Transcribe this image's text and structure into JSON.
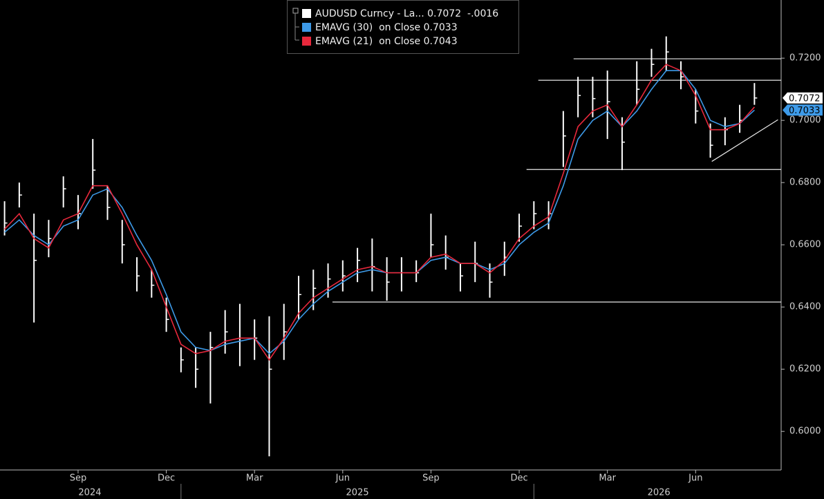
{
  "chart_data": {
    "type": "ohlc",
    "categories": [
      null,
      null,
      null,
      null,
      null,
      "Sep",
      null,
      null,
      null,
      null,
      null,
      "Dec",
      null,
      null,
      null,
      null,
      null,
      "Mar",
      null,
      null,
      null,
      null,
      null,
      "Jun",
      null,
      null,
      null,
      null,
      null,
      "Sep",
      null,
      null,
      null,
      null,
      null,
      "Dec",
      null,
      null,
      null,
      null,
      null,
      "Mar",
      null,
      null,
      null,
      null,
      null,
      "Jun",
      null,
      null,
      null,
      null
    ],
    "x_groups": [
      "2024",
      "2025",
      "2026"
    ],
    "series": [
      {
        "name": "AUDUSD Curncy - La...",
        "color": "#ffffff",
        "change": "-.0016",
        "high": [
          0.674,
          0.68,
          0.67,
          0.668,
          0.682,
          0.676,
          0.694,
          0.679,
          0.668,
          0.656,
          0.652,
          0.643,
          0.627,
          0.627,
          0.632,
          0.639,
          0.641,
          0.636,
          0.637,
          0.641,
          0.65,
          0.652,
          0.654,
          0.655,
          0.659,
          0.662,
          0.656,
          0.656,
          0.655,
          0.67,
          0.663,
          0.654,
          0.661,
          0.654,
          0.661,
          0.67,
          0.674,
          0.674,
          0.703,
          0.714,
          0.714,
          0.716,
          0.701,
          0.719,
          0.723,
          0.727,
          0.719,
          0.71,
          0.699,
          0.701,
          0.705,
          0.712
        ],
        "low": [
          0.663,
          0.672,
          0.635,
          0.656,
          0.672,
          0.665,
          0.678,
          0.668,
          0.654,
          0.645,
          0.643,
          0.632,
          0.619,
          0.614,
          0.609,
          0.625,
          0.621,
          0.623,
          0.592,
          0.623,
          0.636,
          0.639,
          0.643,
          0.645,
          0.648,
          0.645,
          0.642,
          0.645,
          0.648,
          0.656,
          0.652,
          0.645,
          0.648,
          0.643,
          0.65,
          0.661,
          0.665,
          0.665,
          0.685,
          0.701,
          0.701,
          0.694,
          0.684,
          0.705,
          0.714,
          0.716,
          0.71,
          0.699,
          0.688,
          0.692,
          0.696,
          0.705
        ],
        "values": [
          0.667,
          0.676,
          0.655,
          0.662,
          0.678,
          0.67,
          0.684,
          0.672,
          0.66,
          0.65,
          0.647,
          0.636,
          0.623,
          0.62,
          0.627,
          0.632,
          0.63,
          0.63,
          0.62,
          0.632,
          0.644,
          0.646,
          0.649,
          0.65,
          0.655,
          0.653,
          0.648,
          0.651,
          0.651,
          0.66,
          0.656,
          0.65,
          0.654,
          0.648,
          0.656,
          0.666,
          0.67,
          0.67,
          0.695,
          0.708,
          0.707,
          0.706,
          0.693,
          0.71,
          0.718,
          0.722,
          0.714,
          0.703,
          0.692,
          0.697,
          0.7,
          0.7072
        ]
      },
      {
        "name": "EMAVG (30)  on Close",
        "color": "#3d9ae8",
        "values": [
          0.664,
          0.668,
          0.663,
          0.66,
          0.666,
          0.668,
          0.676,
          0.678,
          0.672,
          0.663,
          0.655,
          0.644,
          0.632,
          0.627,
          0.626,
          0.628,
          0.629,
          0.63,
          0.625,
          0.629,
          0.636,
          0.641,
          0.645,
          0.648,
          0.651,
          0.652,
          0.651,
          0.651,
          0.651,
          0.655,
          0.656,
          0.654,
          0.654,
          0.652,
          0.654,
          0.66,
          0.664,
          0.667,
          0.679,
          0.694,
          0.7,
          0.703,
          0.698,
          0.703,
          0.71,
          0.716,
          0.716,
          0.71,
          0.7,
          0.698,
          0.699,
          0.7033
        ]
      },
      {
        "name": "EMAVG (21)  on Close",
        "color": "#e8283c",
        "values": [
          0.665,
          0.67,
          0.662,
          0.659,
          0.668,
          0.67,
          0.679,
          0.679,
          0.67,
          0.66,
          0.652,
          0.64,
          0.628,
          0.625,
          0.626,
          0.629,
          0.63,
          0.63,
          0.623,
          0.63,
          0.638,
          0.643,
          0.646,
          0.649,
          0.652,
          0.653,
          0.651,
          0.651,
          0.651,
          0.656,
          0.657,
          0.654,
          0.654,
          0.651,
          0.655,
          0.662,
          0.666,
          0.669,
          0.683,
          0.698,
          0.703,
          0.705,
          0.698,
          0.705,
          0.713,
          0.718,
          0.716,
          0.708,
          0.697,
          0.697,
          0.699,
          0.7043
        ]
      }
    ],
    "ylim": [
      0.5876,
      0.7387
    ],
    "yticks": [
      {
        "value": 0.6,
        "label": "0.6000"
      },
      {
        "value": 0.62,
        "label": "0.6200"
      },
      {
        "value": 0.64,
        "label": "0.6400"
      },
      {
        "value": 0.66,
        "label": "0.6600"
      },
      {
        "value": 0.68,
        "label": "0.6800"
      },
      {
        "value": 0.7,
        "label": "0.7000"
      },
      {
        "value": 0.72,
        "label": "0.7200"
      }
    ],
    "hlines": [
      {
        "value": 0.7198,
        "from": 38.7
      },
      {
        "value": 0.7129,
        "from": 36.3
      },
      {
        "value": 0.6842,
        "from": 35.5
      },
      {
        "value": 0.6416,
        "from": 22.3
      }
    ],
    "trend_line": {
      "x": [
        48.1,
        52.6
      ],
      "y": [
        0.6868,
        0.7002
      ]
    },
    "legend": "top"
  }
}
